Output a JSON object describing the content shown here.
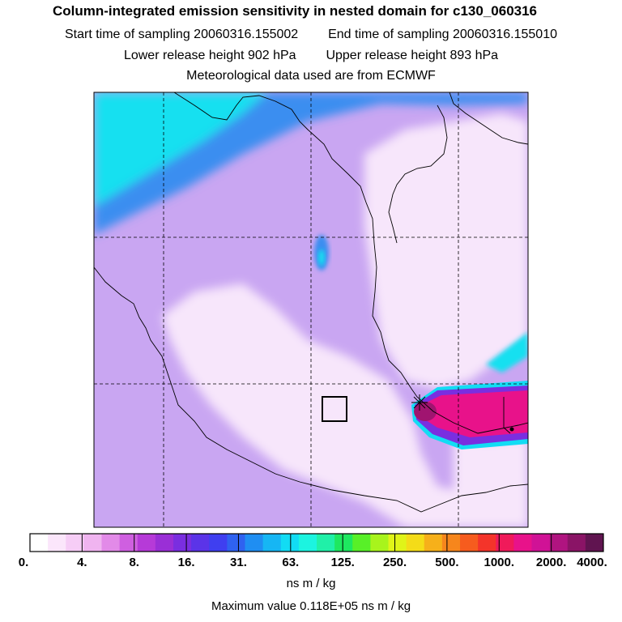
{
  "header": {
    "title": "Column-integrated emission sensitivity in nested domain for c130_060316",
    "start_label": "Start time of sampling",
    "start_value": "20060316.155002",
    "end_label": "End time of sampling",
    "end_value": "20060316.155010",
    "lower_label": "Lower release height",
    "lower_value": "902 hPa",
    "upper_label": "Upper release height",
    "upper_value": "893 hPa",
    "met_line": "Meteorological data used are from ECMWF"
  },
  "colorbar": {
    "colors": [
      "#ffffff",
      "#fbe6fb",
      "#f6cdf6",
      "#f0b4f0",
      "#e28ae8",
      "#cf5fe0",
      "#b63ad8",
      "#9a2fd6",
      "#7a2ee0",
      "#5b34e8",
      "#3f3ff0",
      "#2f62f0",
      "#1f8ef2",
      "#16b6f4",
      "#12dcf4",
      "#1cf4e0",
      "#20f0a8",
      "#1ee860",
      "#58f028",
      "#a8f41c",
      "#e0f418",
      "#f4dc18",
      "#f6b01a",
      "#f6861c",
      "#f65c1e",
      "#f4342a",
      "#f01a5a",
      "#e8128a",
      "#d01296",
      "#b01480",
      "#8a1466",
      "#601450"
    ],
    "tick_labels": [
      "0.",
      "4.",
      "8.",
      "16.",
      "31.",
      "63.",
      "125.",
      "250.",
      "500.",
      "1000.",
      "2000.",
      "4000."
    ],
    "unit": "ns m / kg"
  },
  "max_value_line": "Maximum value  0.118E+05 ns m / kg",
  "map": {
    "background_color": "#c9a6f2",
    "low_color": "#f7e6fb",
    "cyan_color": "#18e0f0",
    "blue_color": "#3a8ef0",
    "plume_colors": [
      "#12dcf4",
      "#7a2ee0",
      "#e8128a",
      "#a01470",
      "#f0b4f0"
    ]
  }
}
